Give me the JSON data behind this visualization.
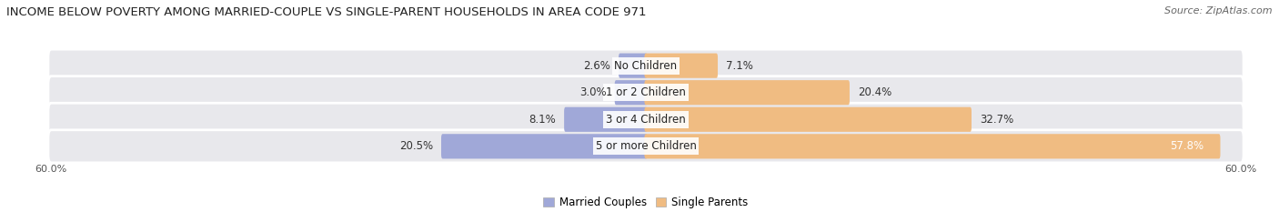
{
  "title": "INCOME BELOW POVERTY AMONG MARRIED-COUPLE VS SINGLE-PARENT HOUSEHOLDS IN AREA CODE 971",
  "source": "Source: ZipAtlas.com",
  "categories": [
    "No Children",
    "1 or 2 Children",
    "3 or 4 Children",
    "5 or more Children"
  ],
  "married_values": [
    2.6,
    3.0,
    8.1,
    20.5
  ],
  "single_values": [
    7.1,
    20.4,
    32.7,
    57.8
  ],
  "married_color": "#a0a8d8",
  "single_color": "#f0bc82",
  "bar_bg_color": "#e8e8ec",
  "axis_limit": 60.0,
  "married_label": "Married Couples",
  "single_label": "Single Parents",
  "title_fontsize": 9.5,
  "source_fontsize": 8,
  "label_fontsize": 8.5,
  "value_fontsize": 8.5,
  "tick_fontsize": 8
}
